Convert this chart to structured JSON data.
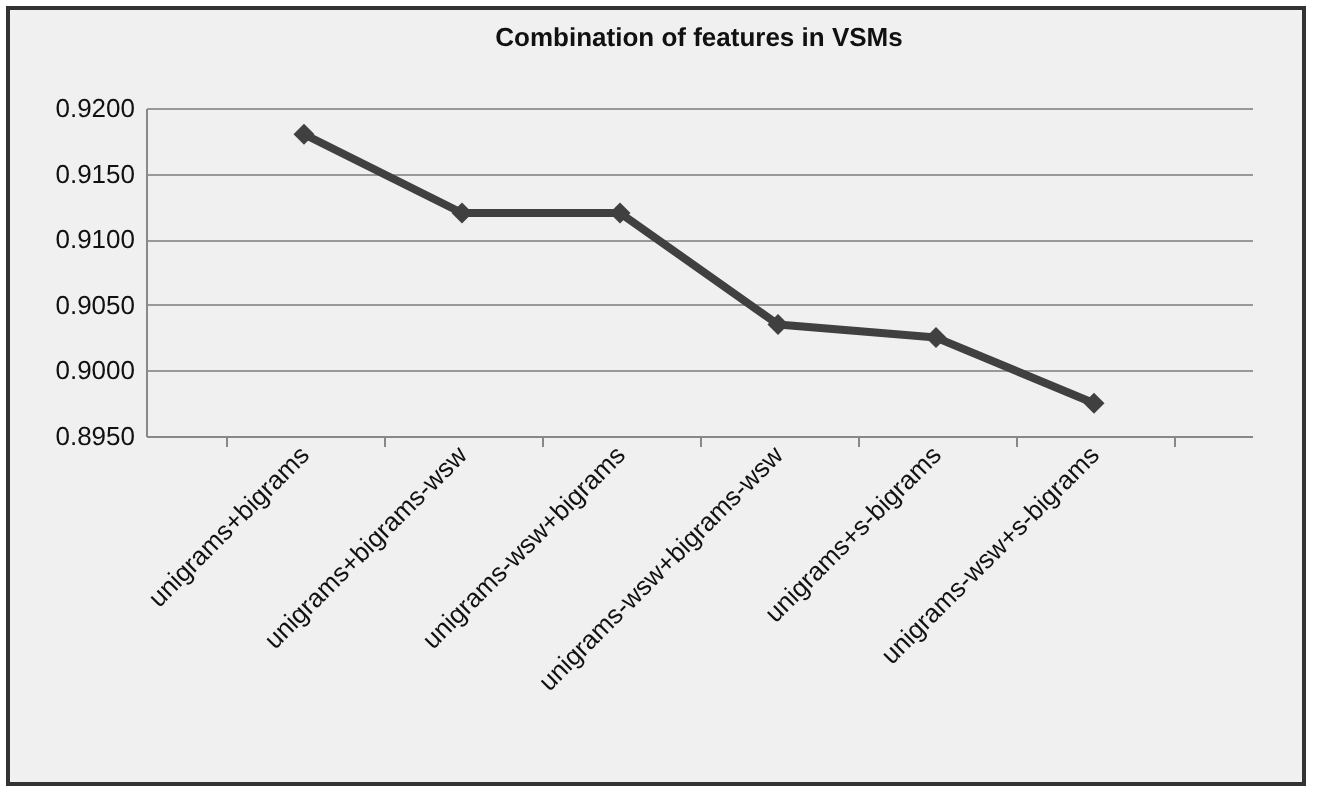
{
  "chart_data": {
    "type": "line",
    "title": "Combination of  features in VSMs",
    "categories": [
      "unigrams+bigrams",
      "unigrams+bigrams-wsw",
      "unigrams-wsw+bigrams",
      "unigrams-wsw+bigrams-wsw",
      "unigrams+s-bigrams",
      "unigrams-wsw+s-bigrams"
    ],
    "series": [
      {
        "color": "#404040",
        "values": [
          0.918,
          0.912,
          0.912,
          0.9035,
          0.9025,
          0.8975
        ]
      }
    ],
    "ylim": [
      0.895,
      0.92
    ],
    "yticks": [
      {
        "value": 0.895,
        "label": "0.8950"
      },
      {
        "value": 0.9,
        "label": "0.9000"
      },
      {
        "value": 0.905,
        "label": "0.9050"
      },
      {
        "value": 0.91,
        "label": "0.9100"
      },
      {
        "value": 0.915,
        "label": "0.9150"
      },
      {
        "value": 0.92,
        "label": "0.9200"
      }
    ],
    "grid": "y",
    "legend": false,
    "marker": "diamond",
    "line_style": "solid"
  }
}
